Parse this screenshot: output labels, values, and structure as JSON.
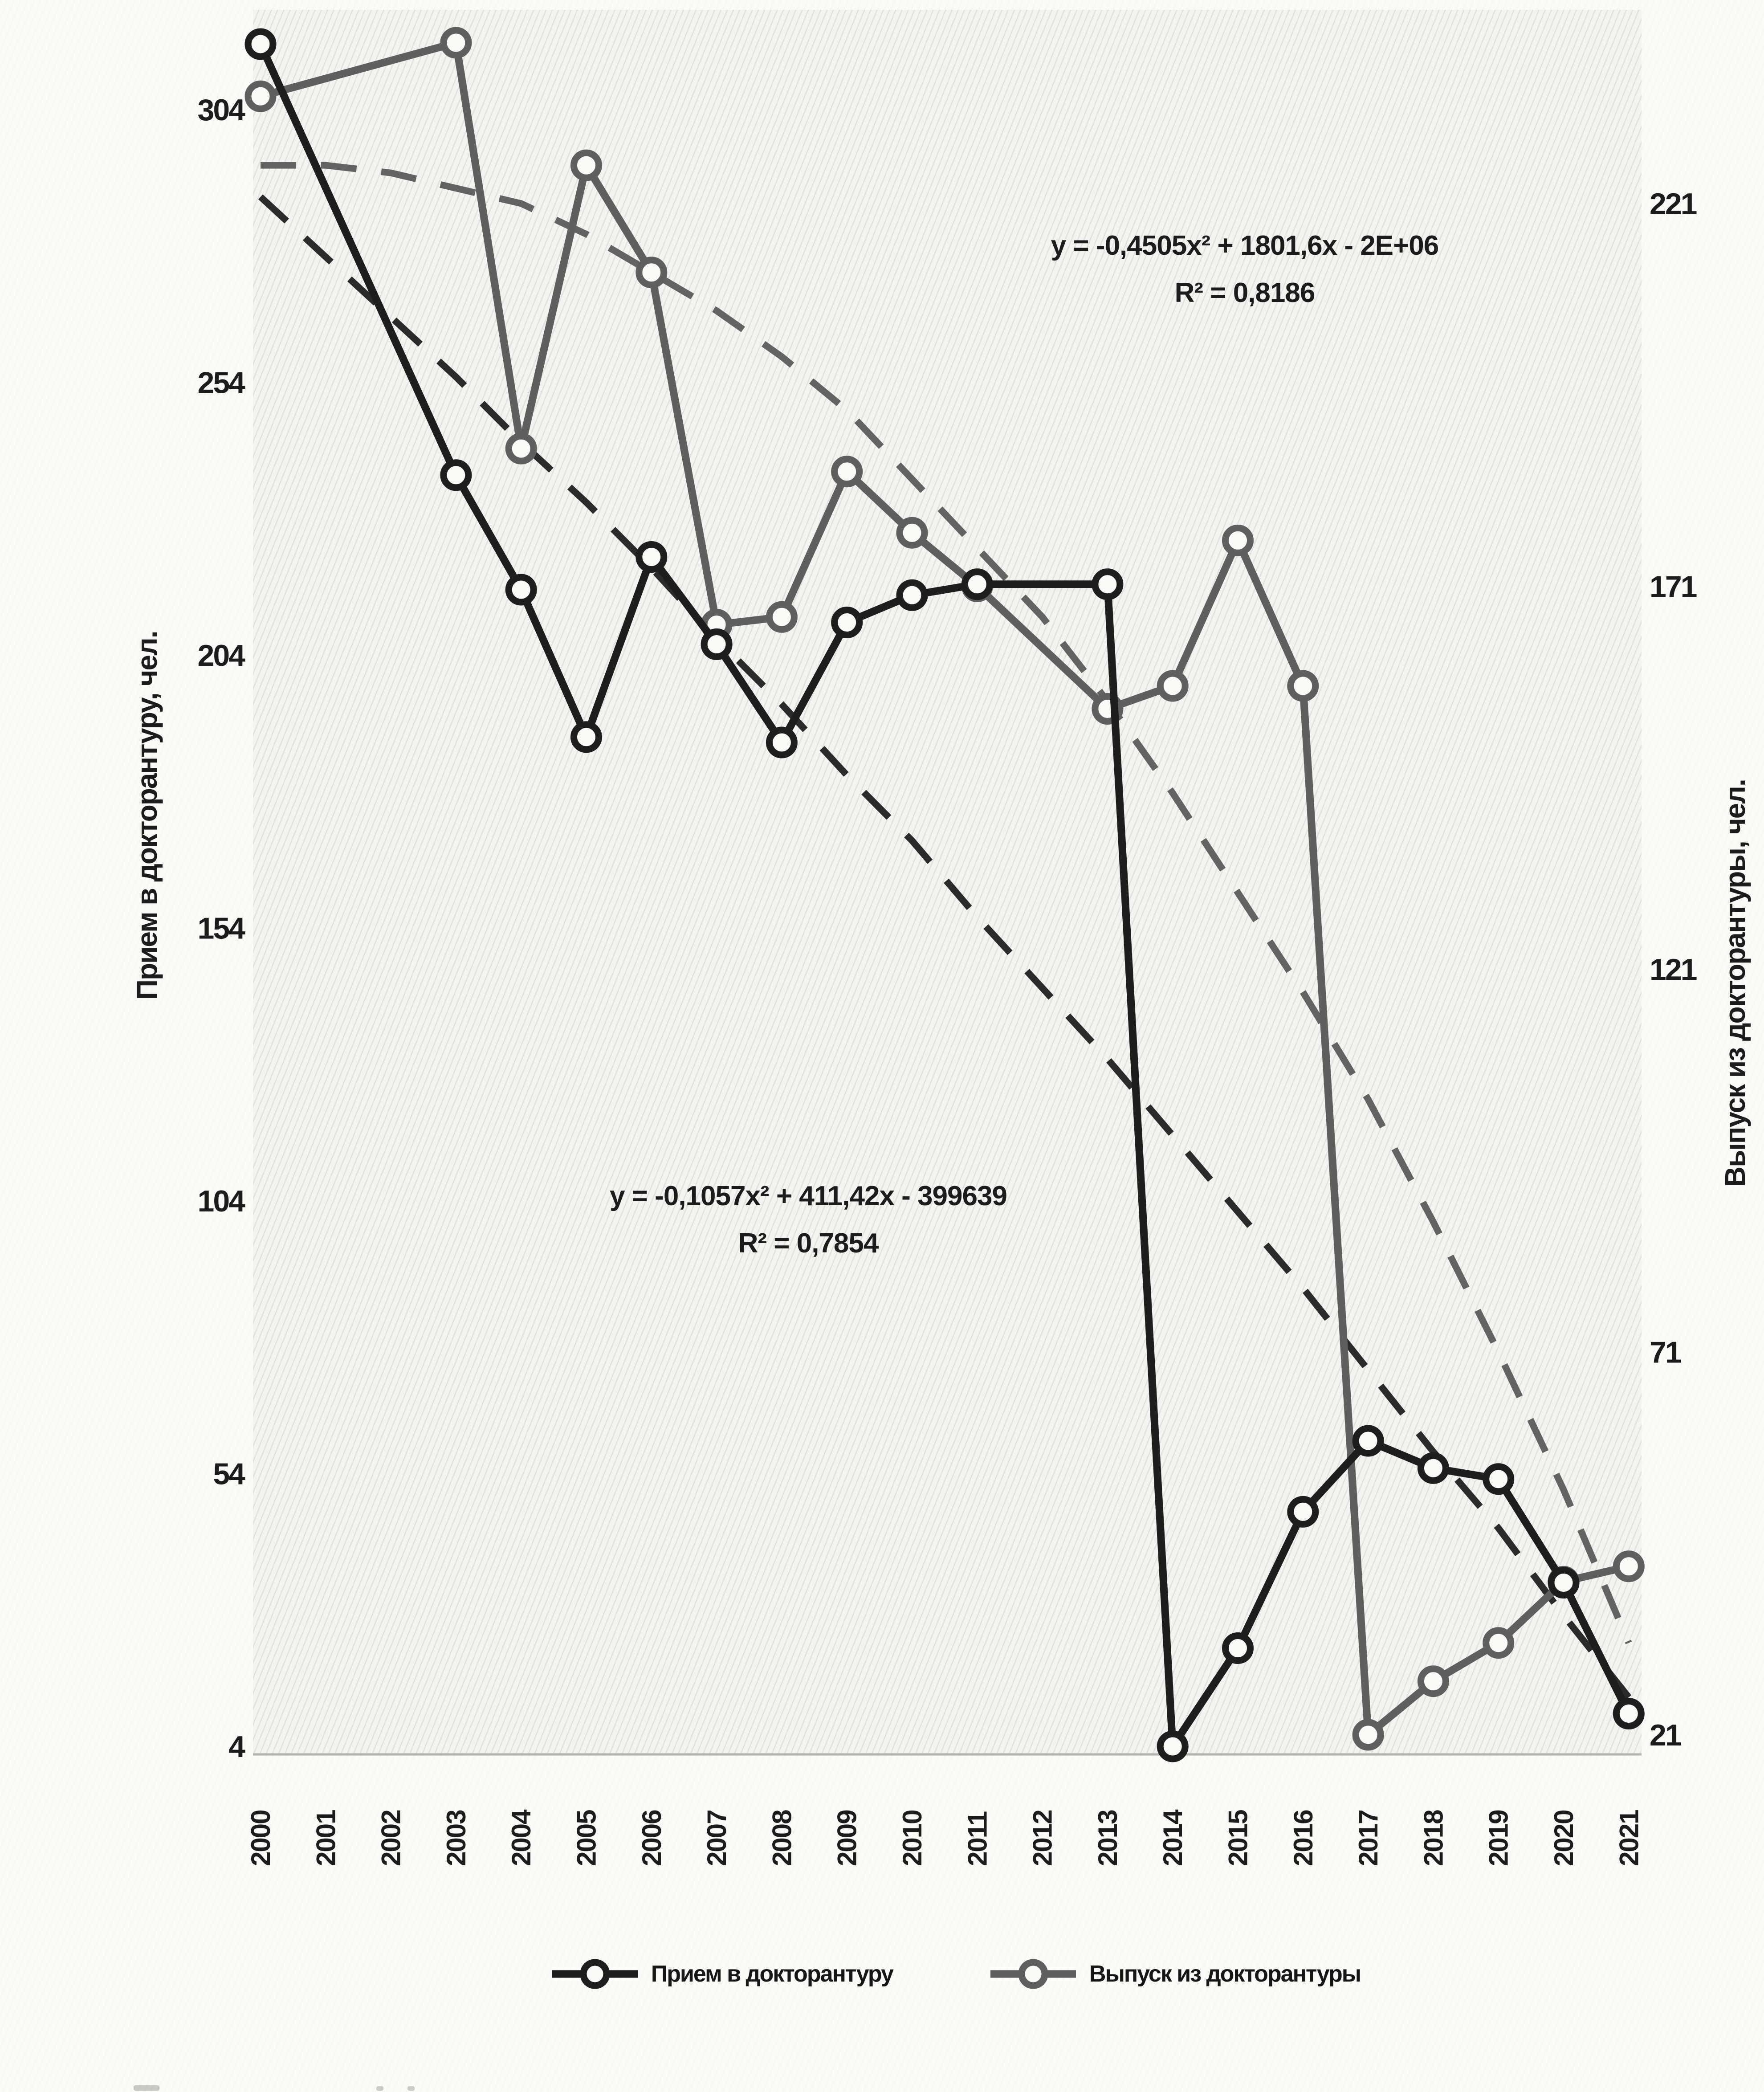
{
  "chart_data": {
    "type": "line",
    "title": "",
    "x_categories": [
      "2000",
      "2001",
      "2002",
      "2003",
      "2004",
      "2005",
      "2006",
      "2007",
      "2008",
      "2009",
      "2010",
      "2011",
      "2012",
      "2013",
      "2014",
      "2015",
      "2016",
      "2017",
      "2018",
      "2019",
      "2020",
      "2021"
    ],
    "axes": {
      "left": {
        "title": "Прием в докторантуру, чел.",
        "ticks": [
          304,
          254,
          204,
          154,
          104,
          54,
          4
        ],
        "min": 4,
        "max": 304
      },
      "right": {
        "title": "Выпуск из докторантуры, чел.",
        "ticks": [
          221,
          171,
          121,
          71,
          21
        ],
        "min": 21,
        "max": 221
      }
    },
    "series": [
      {
        "name": "Прием в докторантуру",
        "axis": "left",
        "color": "#1e1e1e",
        "values": [
          316,
          null,
          null,
          237,
          216,
          189,
          222,
          206,
          188,
          210,
          215,
          217,
          null,
          217,
          4,
          22,
          47,
          60,
          55,
          53,
          34,
          10
        ]
      },
      {
        "name": "Выпуск из докторантуры",
        "axis": "right",
        "color": "#5f5f5f",
        "values": [
          235,
          null,
          null,
          242,
          189,
          226,
          212,
          166,
          167,
          186,
          178,
          171,
          null,
          155,
          158,
          177,
          158,
          21,
          28,
          33,
          41,
          43
        ]
      }
    ],
    "trendlines": [
      {
        "for": "Выпуск из докторантуры",
        "axis": "right",
        "style": "dashed",
        "color": "#636363",
        "equation": "y = -0,4505x² + 1801,6x - 2E+06",
        "r2": "R² = 0,8186",
        "values": [
          226,
          226,
          225,
          223,
          221,
          217,
          212,
          207,
          201,
          194,
          185,
          176,
          167,
          156,
          144,
          131,
          118,
          104,
          88,
          71,
          53,
          33
        ]
      },
      {
        "for": "Прием в докторантуру",
        "axis": "left",
        "style": "dashed",
        "color": "#2b2b2b",
        "equation": "y = -0,1057x² + 411,42x - 399639",
        "r2": "R² = 0,7854",
        "values": [
          288,
          277,
          266,
          255,
          243,
          232,
          220,
          207,
          195,
          182,
          170,
          156,
          143,
          130,
          116,
          102,
          88,
          73,
          58,
          44,
          28,
          13
        ]
      }
    ],
    "legend_position": "bottom",
    "grid": false
  },
  "legend": {
    "items": [
      {
        "label": "Прием в докторантуру",
        "color": "#1e1e1e"
      },
      {
        "label": "Выпуск из докторантуры",
        "color": "#5f5f5f"
      }
    ]
  },
  "colors": {
    "paper": "#fbfaf7",
    "plot_hatch": "#8a8a8a",
    "marker_fill": "#faf9f6"
  }
}
